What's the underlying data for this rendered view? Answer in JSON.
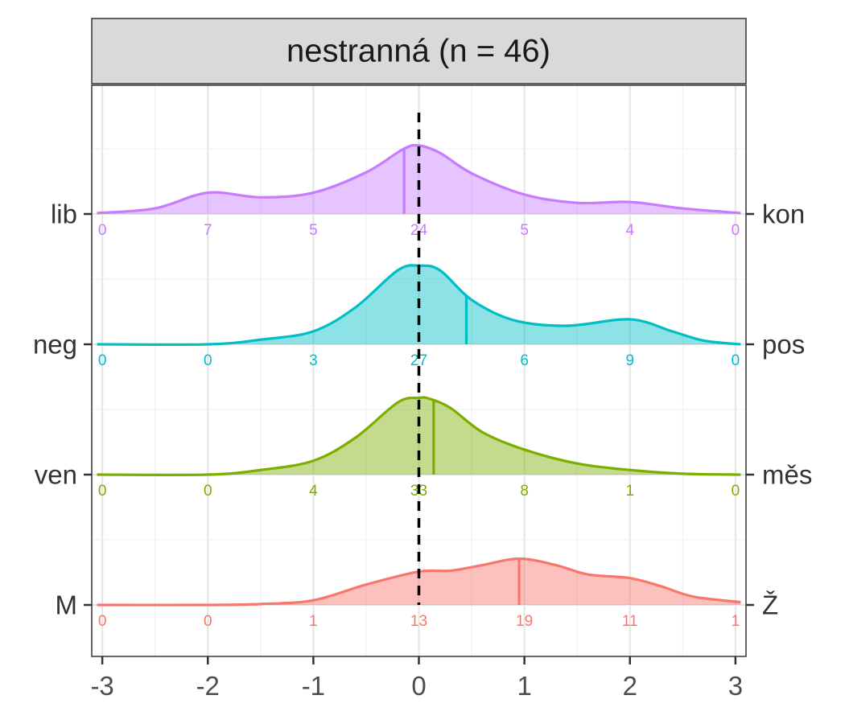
{
  "chart_data": {
    "type": "ridgeline-density",
    "facet_title": "nestranná (n = 46)",
    "xlim": [
      -3.1,
      3.1
    ],
    "x_ticks": [
      -3,
      -2,
      -1,
      0,
      1,
      2,
      3
    ],
    "x_tick_labels": [
      "-3",
      "-2",
      "-1",
      "0",
      "1",
      "2",
      "3"
    ],
    "reference_line_x": 0,
    "grid": true,
    "legend": "none",
    "series": [
      {
        "left_label": "M",
        "right_label": "Ž",
        "color": "#F8766D",
        "mean": 0.95,
        "counts": [
          "0",
          "0",
          "1",
          "13",
          "19",
          "11",
          "1"
        ],
        "density": [
          [
            -3.05,
            0
          ],
          [
            -2,
            0
          ],
          [
            -1.5,
            0.01
          ],
          [
            -1,
            0.05
          ],
          [
            -0.5,
            0.22
          ],
          [
            0,
            0.36
          ],
          [
            0.3,
            0.37
          ],
          [
            0.6,
            0.43
          ],
          [
            0.95,
            0.5
          ],
          [
            1.3,
            0.43
          ],
          [
            1.6,
            0.33
          ],
          [
            2,
            0.29
          ],
          [
            2.3,
            0.2
          ],
          [
            2.6,
            0.09
          ],
          [
            3.05,
            0.03
          ]
        ]
      },
      {
        "left_label": "ven",
        "right_label": "měs",
        "color": "#7CAE00",
        "mean": 0.14,
        "counts": [
          "0",
          "0",
          "4",
          "33",
          "8",
          "1",
          "0"
        ],
        "density": [
          [
            -3.05,
            0
          ],
          [
            -2,
            0
          ],
          [
            -1.5,
            0.05
          ],
          [
            -1,
            0.15
          ],
          [
            -0.6,
            0.4
          ],
          [
            -0.2,
            0.78
          ],
          [
            0,
            0.83
          ],
          [
            0.1,
            0.82
          ],
          [
            0.3,
            0.72
          ],
          [
            0.6,
            0.46
          ],
          [
            1,
            0.27
          ],
          [
            1.5,
            0.12
          ],
          [
            2,
            0.05
          ],
          [
            2.5,
            0.01
          ],
          [
            3.05,
            0
          ]
        ]
      },
      {
        "left_label": "neg",
        "right_label": "pos",
        "color": "#00BFC4",
        "mean": 0.45,
        "counts": [
          "0",
          "0",
          "3",
          "27",
          "6",
          "9",
          "0"
        ],
        "density": [
          [
            -3.05,
            0
          ],
          [
            -2,
            0
          ],
          [
            -1.5,
            0.05
          ],
          [
            -1,
            0.14
          ],
          [
            -0.6,
            0.4
          ],
          [
            -0.2,
            0.8
          ],
          [
            0,
            0.85
          ],
          [
            0.2,
            0.8
          ],
          [
            0.5,
            0.48
          ],
          [
            0.9,
            0.26
          ],
          [
            1.4,
            0.2
          ],
          [
            2,
            0.27
          ],
          [
            2.4,
            0.14
          ],
          [
            2.7,
            0.04
          ],
          [
            3.05,
            0
          ]
        ]
      },
      {
        "left_label": "lib",
        "right_label": "kon",
        "color": "#C77CFF",
        "mean": -0.14,
        "counts": [
          "0",
          "7",
          "5",
          "24",
          "5",
          "4",
          "0"
        ],
        "density": [
          [
            -3.05,
            0.01
          ],
          [
            -2.5,
            0.06
          ],
          [
            -2,
            0.23
          ],
          [
            -1.5,
            0.18
          ],
          [
            -1,
            0.23
          ],
          [
            -0.5,
            0.45
          ],
          [
            -0.15,
            0.7
          ],
          [
            0,
            0.74
          ],
          [
            0.2,
            0.66
          ],
          [
            0.5,
            0.44
          ],
          [
            1,
            0.21
          ],
          [
            1.5,
            0.12
          ],
          [
            2,
            0.13
          ],
          [
            2.5,
            0.06
          ],
          [
            3.05,
            0.01
          ]
        ]
      }
    ]
  }
}
